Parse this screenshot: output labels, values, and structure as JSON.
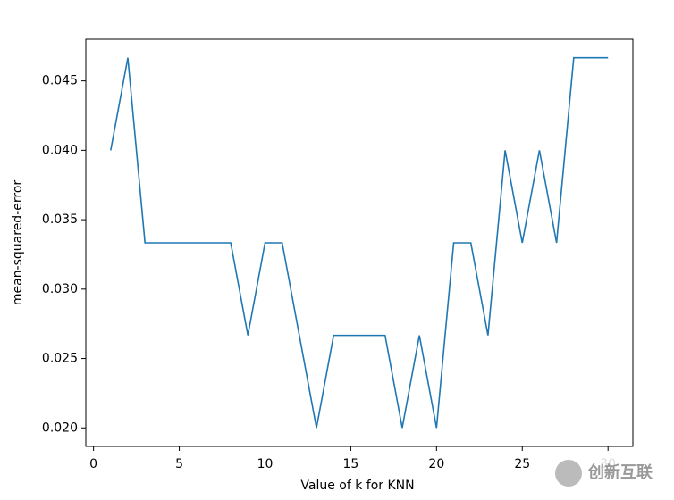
{
  "chart_data": {
    "type": "line",
    "x_label": "Value of k for KNN",
    "y_label": "mean-squared-error",
    "x": [
      1,
      2,
      3,
      4,
      5,
      6,
      7,
      8,
      9,
      10,
      11,
      12,
      13,
      14,
      15,
      16,
      17,
      18,
      19,
      20,
      21,
      22,
      23,
      24,
      25,
      26,
      27,
      28,
      29,
      30
    ],
    "series": [
      {
        "color": "#1f77b4",
        "values": [
          0.04,
          0.046667,
          0.033333,
          0.033333,
          0.033333,
          0.033333,
          0.033333,
          0.033333,
          0.026667,
          0.033333,
          0.033333,
          0.026667,
          0.02,
          0.026667,
          0.026667,
          0.026667,
          0.026667,
          0.02,
          0.026667,
          0.02,
          0.033333,
          0.033333,
          0.026667,
          0.04,
          0.033333,
          0.04,
          0.033333,
          0.046667,
          0.046667,
          0.046667
        ]
      }
    ],
    "xlim": [
      -0.45,
      31.45
    ],
    "ylim": [
      0.018667,
      0.048
    ],
    "xticks": [
      0,
      5,
      10,
      15,
      20,
      25,
      30
    ],
    "yticks": [
      {
        "value": 0.02,
        "label": "0.020"
      },
      {
        "value": 0.025,
        "label": "0.025"
      },
      {
        "value": 0.03,
        "label": "0.030"
      },
      {
        "value": 0.035,
        "label": "0.035"
      },
      {
        "value": 0.04,
        "label": "0.040"
      },
      {
        "value": 0.045,
        "label": "0.045"
      }
    ],
    "grid": false,
    "watermark": "创新互联"
  }
}
